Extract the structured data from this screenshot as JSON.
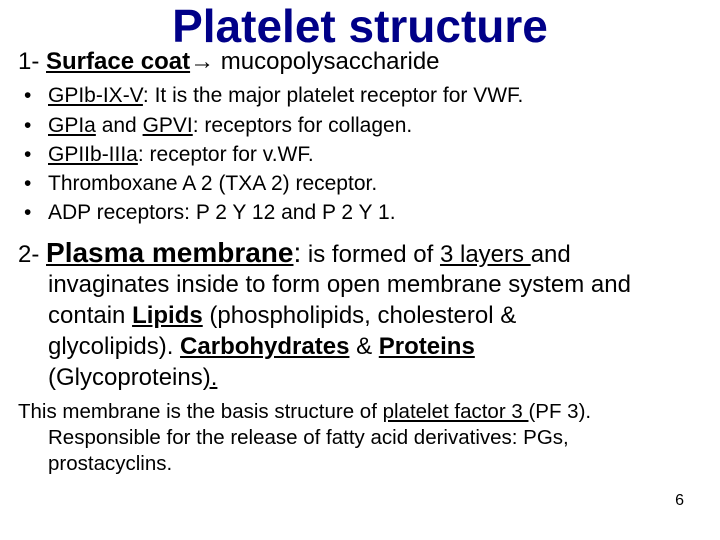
{
  "title": "Platelet structure",
  "section1": {
    "num": "1-",
    "label": "Surface coat",
    "arrow": "→",
    "rest": "mucopolysaccharide"
  },
  "bullets": {
    "b1_u": "GPIb-IX-V",
    "b1_r": ": It is the major platelet receptor for VWF.",
    "b2_a": "GPIa",
    "b2_mid": " and ",
    "b2_b": "GPVI",
    "b2_r": ": receptors for collagen.",
    "b3_u": "GPIIb-IIIa",
    "b3_r": ": receptor for v.WF.",
    "b4": "Thromboxane A 2 (TXA 2) receptor.",
    "b5": "ADP receptors: P 2 Y 12 and P 2 Y 1."
  },
  "section2": {
    "num": "2-",
    "label": "Plasma membrane",
    "colon": ":",
    "t1": " is formed of ",
    "layers": "3 layers ",
    "t2": "and ",
    "line2a": "invaginates inside to form open membrane system and ",
    "line3a": "contain ",
    "lipids": "Lipids",
    "line3b": " (phospholipids, cholesterol & ",
    "line4a": "glycolipids). ",
    "carbs": "Carbohydrates",
    "amp": " & ",
    "prot": "Proteins",
    "line5a": "(Glycoproteins",
    "paren": ").",
    "underparen": "."
  },
  "para3": {
    "t1": "This membrane is the basis structure of ",
    "pf3": "platelet factor 3 ",
    "pf3b": "(PF 3). ",
    "line2": "Responsible for the release of fatty acid derivatives: PGs, ",
    "line3": "prostacyclins."
  },
  "pagenum": "6",
  "colors": {
    "title": "#000088",
    "text": "#000000",
    "bg": "#ffffff"
  },
  "fontsizes": {
    "title": 46,
    "section": 24,
    "bullet": 21,
    "para3": 20.5,
    "pagenum": 16
  }
}
